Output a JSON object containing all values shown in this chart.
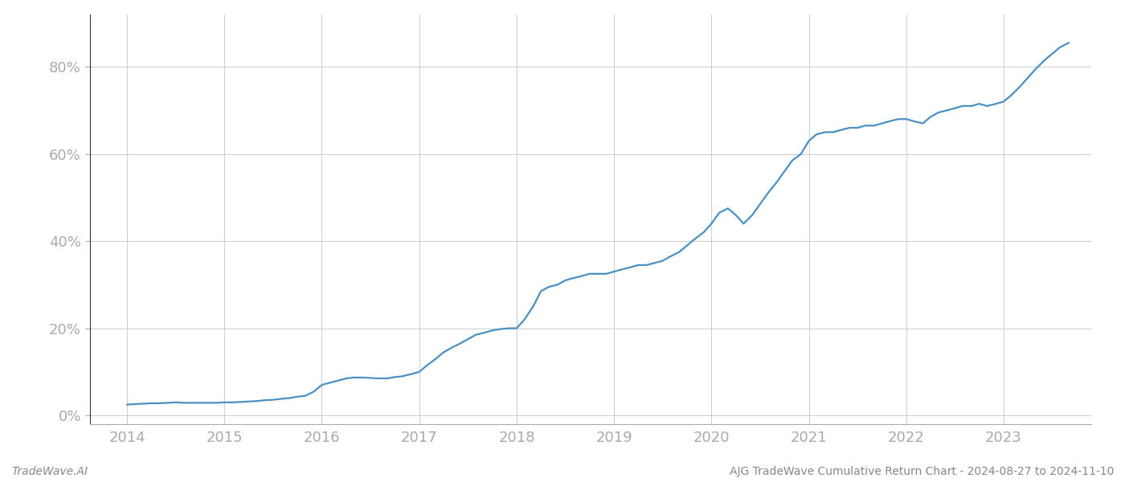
{
  "title": "AJG TradeWave Cumulative Return Chart - 2024-08-27 to 2024-11-10",
  "left_label": "TradeWave.AI",
  "line_color": "#4a90c4",
  "background_color": "#ffffff",
  "grid_color": "#cccccc",
  "x_years": [
    2014,
    2015,
    2016,
    2017,
    2018,
    2019,
    2020,
    2021,
    2022,
    2023
  ],
  "x_data": [
    2014.0,
    2014.08,
    2014.17,
    2014.25,
    2014.33,
    2014.42,
    2014.5,
    2014.58,
    2014.67,
    2014.75,
    2014.83,
    2014.92,
    2015.0,
    2015.08,
    2015.17,
    2015.25,
    2015.33,
    2015.42,
    2015.5,
    2015.58,
    2015.67,
    2015.75,
    2015.83,
    2015.92,
    2016.0,
    2016.08,
    2016.17,
    2016.25,
    2016.33,
    2016.42,
    2016.5,
    2016.58,
    2016.67,
    2016.75,
    2016.83,
    2016.92,
    2017.0,
    2017.08,
    2017.17,
    2017.25,
    2017.33,
    2017.42,
    2017.5,
    2017.58,
    2017.67,
    2017.75,
    2017.83,
    2017.92,
    2018.0,
    2018.08,
    2018.17,
    2018.25,
    2018.33,
    2018.42,
    2018.5,
    2018.58,
    2018.67,
    2018.75,
    2018.83,
    2018.92,
    2019.0,
    2019.08,
    2019.17,
    2019.25,
    2019.33,
    2019.42,
    2019.5,
    2019.58,
    2019.67,
    2019.75,
    2019.83,
    2019.92,
    2020.0,
    2020.08,
    2020.17,
    2020.25,
    2020.33,
    2020.42,
    2020.5,
    2020.58,
    2020.67,
    2020.75,
    2020.83,
    2020.92,
    2021.0,
    2021.08,
    2021.17,
    2021.25,
    2021.33,
    2021.42,
    2021.5,
    2021.58,
    2021.67,
    2021.75,
    2021.83,
    2021.92,
    2022.0,
    2022.08,
    2022.17,
    2022.25,
    2022.33,
    2022.42,
    2022.5,
    2022.58,
    2022.67,
    2022.75,
    2022.83,
    2022.92,
    2023.0,
    2023.08,
    2023.17,
    2023.25,
    2023.33,
    2023.42,
    2023.5,
    2023.58,
    2023.67
  ],
  "y_data": [
    2.5,
    2.6,
    2.7,
    2.8,
    2.8,
    2.9,
    3.0,
    2.9,
    2.9,
    2.9,
    2.9,
    2.9,
    3.0,
    3.0,
    3.1,
    3.2,
    3.3,
    3.5,
    3.6,
    3.8,
    4.0,
    4.3,
    4.5,
    5.5,
    7.0,
    7.5,
    8.0,
    8.5,
    8.7,
    8.7,
    8.6,
    8.5,
    8.5,
    8.8,
    9.0,
    9.5,
    10.0,
    11.5,
    13.0,
    14.5,
    15.5,
    16.5,
    17.5,
    18.5,
    19.0,
    19.5,
    19.8,
    20.0,
    20.0,
    22.0,
    25.0,
    28.5,
    29.5,
    30.0,
    31.0,
    31.5,
    32.0,
    32.5,
    32.5,
    32.5,
    33.0,
    33.5,
    34.0,
    34.5,
    34.5,
    35.0,
    35.5,
    36.5,
    37.5,
    39.0,
    40.5,
    42.0,
    44.0,
    46.5,
    47.5,
    46.0,
    44.0,
    46.0,
    48.5,
    51.0,
    53.5,
    56.0,
    58.5,
    60.0,
    63.0,
    64.5,
    65.0,
    65.0,
    65.5,
    66.0,
    66.0,
    66.5,
    66.5,
    67.0,
    67.5,
    68.0,
    68.0,
    67.5,
    67.0,
    68.5,
    69.5,
    70.0,
    70.5,
    71.0,
    71.0,
    71.5,
    71.0,
    71.5,
    72.0,
    73.5,
    75.5,
    77.5,
    79.5,
    81.5,
    83.0,
    84.5,
    85.5
  ],
  "ylim": [
    -2,
    92
  ],
  "yticks": [
    0,
    20,
    40,
    60,
    80
  ],
  "xlim": [
    2013.62,
    2023.9
  ],
  "tick_color": "#aaaaaa",
  "axis_color": "#aaaaaa",
  "spine_color": "#333333",
  "tick_fontsize": 13,
  "footer_fontsize": 10,
  "line_width": 1.6
}
